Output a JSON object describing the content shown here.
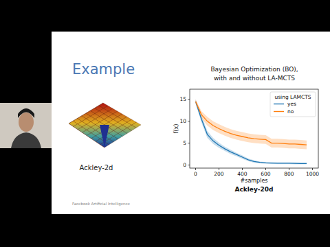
{
  "slide": {
    "title": "Example",
    "image_caption": "Ackley-2d",
    "footer": "Facebook Artificial Intelligence"
  },
  "chart_data": {
    "type": "line",
    "title": "Bayesian Optimization (BO),",
    "subtitle": "with and without LA-MCTS",
    "x_label": "#samples",
    "y_label": "f(x)",
    "caption": "Ackley-20d",
    "legend_title": "using LAMCTS",
    "legend": "upper right",
    "x": [
      0,
      50,
      100,
      150,
      200,
      250,
      300,
      350,
      400,
      450,
      500,
      550,
      600,
      650,
      700,
      750,
      800,
      850,
      900,
      950
    ],
    "series": [
      {
        "name": "yes",
        "color": "#1f77b4",
        "values": [
          14.5,
          10.5,
          7,
          5.5,
          4.5,
          3.7,
          3,
          2.4,
          1.8,
          1.2,
          0.8,
          0.6,
          0.5,
          0.45,
          0.4,
          0.4,
          0.4,
          0.38,
          0.35,
          0.35
        ],
        "errors": [
          0.5,
          0.8,
          0.8,
          0.7,
          0.6,
          0.5,
          0.5,
          0.4,
          0.4,
          0.3,
          0.3,
          0.2,
          0.2,
          0.2,
          0.2,
          0.2,
          0.2,
          0.2,
          0.2,
          0.2
        ]
      },
      {
        "name": "no",
        "color": "#ff7f0e",
        "values": [
          14.5,
          11.5,
          10,
          9,
          8.3,
          7.7,
          7.2,
          6.8,
          6.5,
          6.2,
          6,
          5.9,
          5.8,
          5,
          5,
          4.9,
          4.8,
          4.8,
          4.7,
          4.6
        ],
        "errors": [
          0.5,
          0.8,
          1,
          1,
          1,
          1,
          1,
          1,
          1,
          1,
          1,
          1,
          1,
          1,
          1,
          1,
          1,
          1,
          1,
          1
        ]
      }
    ],
    "xlim": [
      -50,
      1050
    ],
    "ylim": [
      -0.7,
      17.3
    ],
    "xticks": [
      0,
      200,
      400,
      600,
      800,
      1000
    ],
    "yticks": [
      0,
      5,
      10,
      15
    ]
  }
}
